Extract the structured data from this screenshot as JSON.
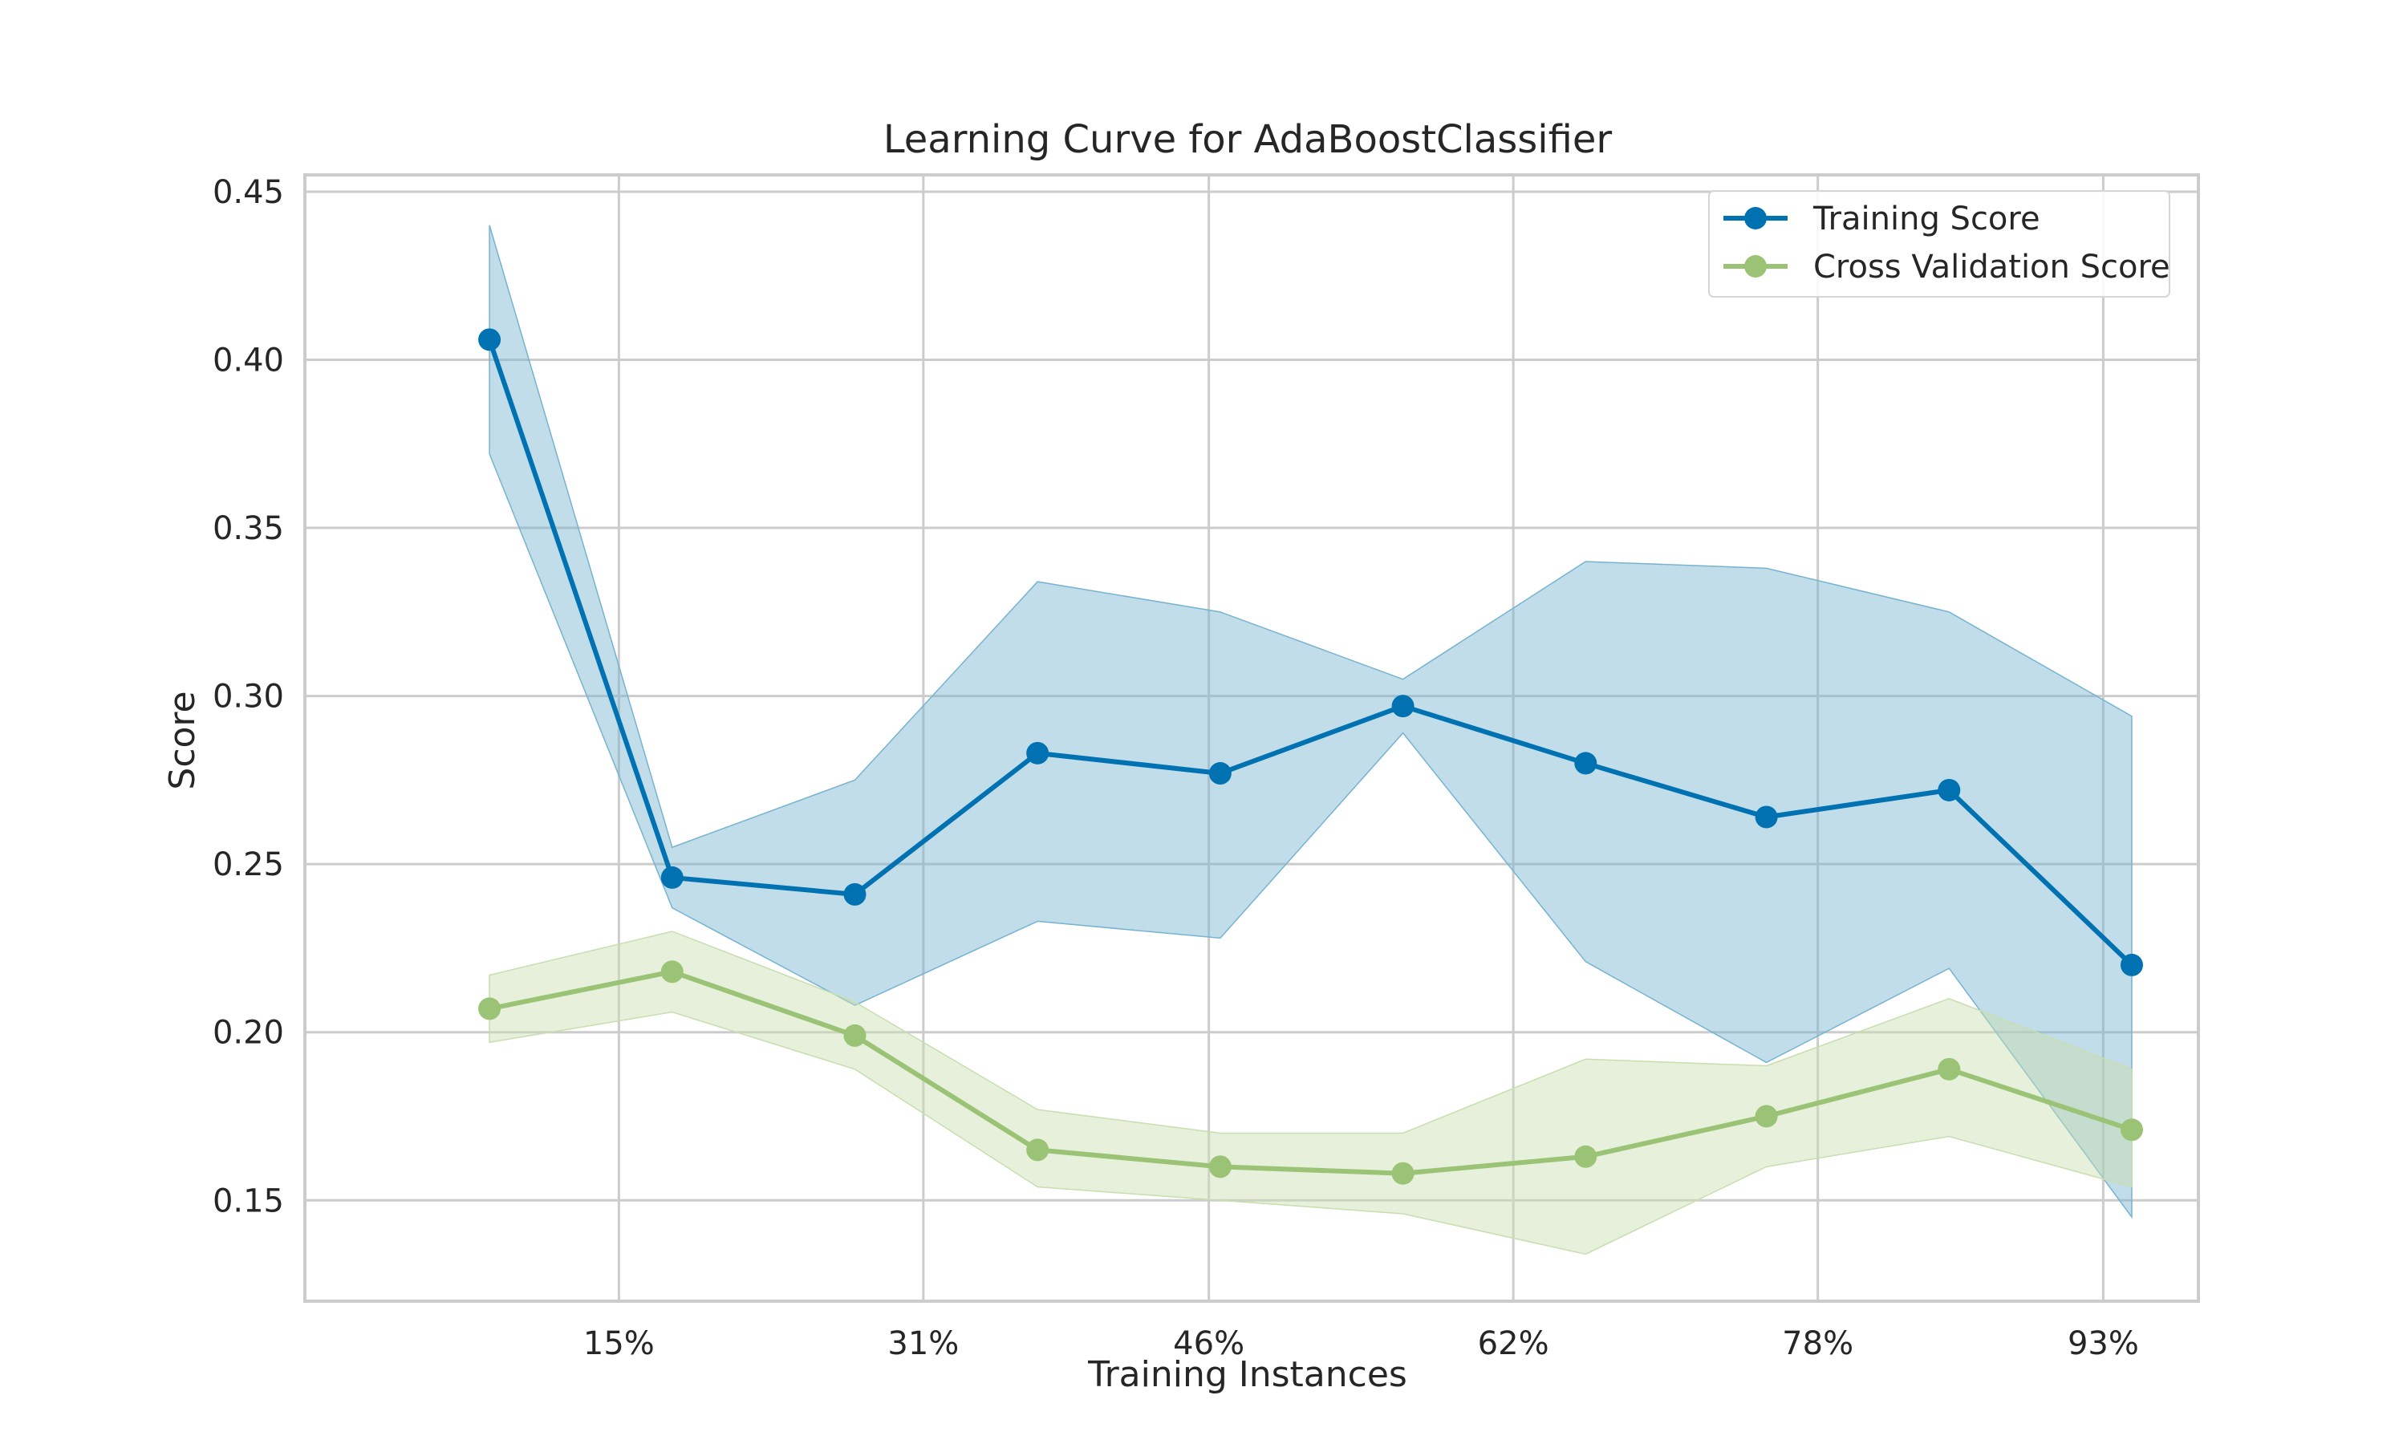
{
  "chart_data": {
    "type": "line",
    "title": "Learning Curve for AdaBoostClassifier",
    "xlabel": "Training Instances",
    "ylabel": "Score",
    "x": [
      0.082,
      0.178,
      0.274,
      0.37,
      0.466,
      0.562,
      0.658,
      0.753,
      0.849,
      0.945
    ],
    "xlim": [
      -0.015,
      0.98
    ],
    "ylim": [
      0.12,
      0.455
    ],
    "x_ticks": [
      0.15,
      0.31,
      0.46,
      0.62,
      0.78,
      0.93
    ],
    "x_tick_labels": [
      "15%",
      "31%",
      "46%",
      "62%",
      "78%",
      "93%"
    ],
    "y_ticks": [
      0.15,
      0.2,
      0.25,
      0.3,
      0.35,
      0.4,
      0.45
    ],
    "y_tick_labels": [
      "0.15",
      "0.20",
      "0.25",
      "0.30",
      "0.35",
      "0.40",
      "0.45"
    ],
    "grid": true,
    "legend_position": "top-right",
    "series": [
      {
        "name": "Training Score",
        "color": "#0072b2",
        "band_color": "#76b3d1",
        "values": [
          0.406,
          0.246,
          0.241,
          0.283,
          0.277,
          0.297,
          0.28,
          0.264,
          0.272,
          0.22
        ],
        "upper": [
          0.44,
          0.255,
          0.275,
          0.334,
          0.325,
          0.305,
          0.34,
          0.338,
          0.325,
          0.294
        ],
        "lower": [
          0.372,
          0.237,
          0.208,
          0.233,
          0.228,
          0.289,
          0.221,
          0.191,
          0.219,
          0.145
        ]
      },
      {
        "name": "Cross Validation Score",
        "color": "#9bc375",
        "band_color": "#c8deaf",
        "values": [
          0.207,
          0.218,
          0.199,
          0.165,
          0.16,
          0.158,
          0.163,
          0.175,
          0.189,
          0.171
        ],
        "upper": [
          0.217,
          0.23,
          0.209,
          0.177,
          0.17,
          0.17,
          0.192,
          0.19,
          0.21,
          0.189
        ],
        "lower": [
          0.197,
          0.206,
          0.189,
          0.154,
          0.15,
          0.146,
          0.134,
          0.16,
          0.169,
          0.154
        ]
      }
    ]
  }
}
